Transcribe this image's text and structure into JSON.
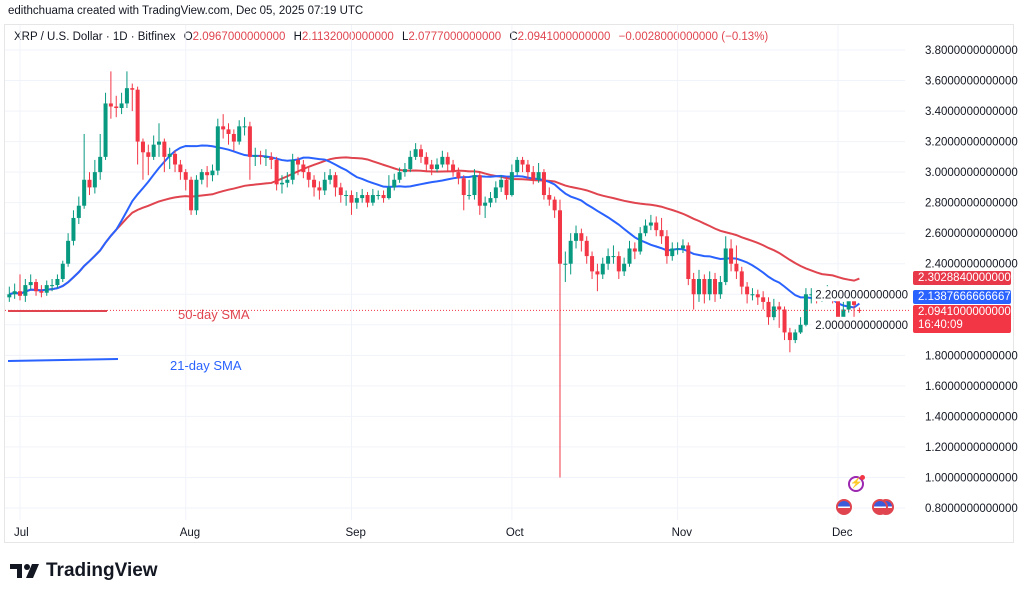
{
  "credit": "edithchuama created with TradingView.com, Dec 05, 2025 07:19 UTC",
  "legend": {
    "symbol": "XRP / U.S. Dollar · 1D · Bitfinex",
    "o_label": "O",
    "o": "2.0967000000000",
    "h_label": "H",
    "h": "2.1132000000000",
    "l_label": "L",
    "l": "2.0777000000000",
    "c_label": "C",
    "c": "2.0941000000000",
    "change": "−0.0028000000000 (−0.13%)"
  },
  "badges": {
    "sma50": "2.3028840000000",
    "sma21": "2.1387666666667",
    "price": "2.0941000000000",
    "countdown": "16:40:09"
  },
  "annotations": {
    "sma50": "50-day SMA",
    "sma21": "21-day SMA"
  },
  "logo": "TradingView",
  "colors": {
    "up": "#089981",
    "down": "#f23645",
    "sma50": "#e0454f",
    "sma21": "#2962ff",
    "sma50_badge": "#e8394a",
    "sma21_badge": "#2962ff",
    "price_badge": "#f23645"
  },
  "icons": [
    "lightning-sparkle-icon",
    "us-flag-event-icon",
    "us-flag-event-icon"
  ],
  "chart_data": {
    "type": "candlestick",
    "title": "XRP / U.S. Dollar · 1D · Bitfinex",
    "start_date": "2025-06-29",
    "end_date": "2025-12-05",
    "first_open": 2.18,
    "last_open": 2.0967,
    "ylim": [
      0.8,
      3.8
    ],
    "y_ticks": [
      "3.8000000000000",
      "3.6000000000000",
      "3.4000000000000",
      "3.2000000000000",
      "3.0000000000000",
      "2.8000000000000",
      "2.6000000000000",
      "2.4000000000000",
      "2.2000000000000",
      "2.0000000000000",
      "1.8000000000000",
      "1.6000000000000",
      "1.4000000000000",
      "1.2000000000000",
      "1.0000000000000",
      "0.8000000000000"
    ],
    "x_ticks": [
      {
        "label": "Jul",
        "date": "2025-07-01"
      },
      {
        "label": "Aug",
        "date": "2025-08-01"
      },
      {
        "label": "Sep",
        "date": "2025-09-01"
      },
      {
        "label": "Oct",
        "date": "2025-10-01"
      },
      {
        "label": "Nov",
        "date": "2025-11-01"
      },
      {
        "label": "Dec",
        "date": "2025-12-01"
      }
    ],
    "grid": true,
    "indicators": [
      {
        "name": "50-day SMA",
        "period": 50,
        "last": 2.302884
      },
      {
        "name": "21-day SMA",
        "period": 21,
        "last": 2.1387666666667
      }
    ],
    "close": [
      2.2,
      2.22,
      2.19,
      2.26,
      2.28,
      2.22,
      2.21,
      2.26,
      2.26,
      2.3,
      2.4,
      2.55,
      2.7,
      2.78,
      2.95,
      2.9,
      3.0,
      3.1,
      3.45,
      3.43,
      3.42,
      3.45,
      3.55,
      3.54,
      3.2,
      3.13,
      3.1,
      3.18,
      3.2,
      3.1,
      3.12,
      3.05,
      3.0,
      2.95,
      2.75,
      2.95,
      3.0,
      2.98,
      3.01,
      3.3,
      3.28,
      3.25,
      3.2,
      3.3,
      3.3,
      3.1,
      3.11,
      3.1,
      3.1,
      3.08,
      2.92,
      2.93,
      2.95,
      3.08,
      3.05,
      3.0,
      2.95,
      2.9,
      2.88,
      2.95,
      2.98,
      2.9,
      2.85,
      2.85,
      2.8,
      2.83,
      2.85,
      2.8,
      2.85,
      2.85,
      2.83,
      2.9,
      2.95,
      3.0,
      3.02,
      3.1,
      3.15,
      3.1,
      3.05,
      3.02,
      3.05,
      3.1,
      3.05,
      3.0,
      2.96,
      2.85,
      2.85,
      2.98,
      2.78,
      2.8,
      2.83,
      2.9,
      2.95,
      2.85,
      3.0,
      3.08,
      3.05,
      3.0,
      2.95,
      3.0,
      2.85,
      2.82,
      2.75,
      2.4,
      2.4,
      2.55,
      2.6,
      2.55,
      2.45,
      2.35,
      2.33,
      2.4,
      2.45,
      2.45,
      2.35,
      2.4,
      2.5,
      2.48,
      2.6,
      2.65,
      2.67,
      2.62,
      2.58,
      2.45,
      2.5,
      2.5,
      2.52,
      2.3,
      2.2,
      2.3,
      2.2,
      2.3,
      2.2,
      2.28,
      2.5,
      2.4,
      2.35,
      2.25,
      2.2,
      2.2,
      2.18,
      2.15,
      2.05,
      2.12,
      2.1,
      1.95,
      1.9,
      1.95,
      2.0,
      2.2,
      2.2,
      2.18,
      2.19,
      2.2,
      2.18,
      2.0,
      2.1,
      2.2,
      2.13,
      2.0941
    ],
    "high": [
      2.25,
      2.27,
      2.33,
      2.3,
      2.33,
      2.3,
      2.26,
      2.29,
      2.3,
      2.33,
      2.42,
      2.6,
      2.75,
      2.84,
      3.25,
      3.0,
      3.08,
      3.25,
      3.52,
      3.66,
      3.5,
      3.52,
      3.66,
      3.58,
      3.56,
      3.22,
      3.18,
      3.24,
      3.32,
      3.22,
      3.16,
      3.14,
      3.08,
      3.02,
      2.97,
      2.98,
      3.02,
      3.04,
      3.05,
      3.35,
      3.38,
      3.32,
      3.28,
      3.34,
      3.36,
      3.33,
      3.16,
      3.14,
      3.15,
      3.13,
      3.1,
      2.98,
      3.0,
      3.12,
      3.1,
      3.08,
      3.03,
      2.98,
      2.94,
      3.0,
      3.02,
      3.0,
      2.93,
      2.88,
      2.88,
      2.87,
      2.89,
      2.87,
      2.89,
      2.88,
      2.88,
      2.98,
      2.99,
      3.03,
      3.06,
      3.14,
      3.19,
      3.18,
      3.13,
      3.08,
      3.09,
      3.14,
      3.13,
      3.08,
      3.03,
      2.98,
      2.95,
      3.02,
      3.0,
      2.84,
      2.87,
      2.94,
      2.98,
      2.97,
      3.05,
      3.1,
      3.1,
      3.08,
      3.04,
      3.06,
      3.02,
      2.9,
      2.84,
      2.82,
      2.48,
      2.6,
      2.65,
      2.63,
      2.58,
      2.48,
      2.4,
      2.44,
      2.5,
      2.52,
      2.48,
      2.44,
      2.55,
      2.54,
      2.64,
      2.69,
      2.72,
      2.71,
      2.7,
      2.62,
      2.54,
      2.54,
      2.56,
      2.54,
      2.34,
      2.36,
      2.33,
      2.35,
      2.34,
      2.32,
      2.58,
      2.56,
      2.52,
      2.38,
      2.28,
      2.24,
      2.23,
      2.22,
      2.18,
      2.17,
      2.15,
      2.12,
      1.98,
      1.97,
      2.05,
      2.24,
      2.24,
      2.24,
      2.24,
      2.26,
      2.22,
      2.2,
      2.15,
      2.23,
      2.22,
      2.1132
    ],
    "low": [
      2.15,
      2.17,
      2.16,
      2.15,
      2.23,
      2.19,
      2.18,
      2.19,
      2.22,
      2.24,
      2.28,
      2.38,
      2.52,
      2.66,
      2.76,
      2.85,
      2.86,
      2.95,
      3.08,
      3.35,
      3.36,
      3.38,
      3.42,
      3.4,
      3.05,
      2.95,
      2.98,
      3.08,
      3.1,
      3.0,
      3.02,
      3.0,
      2.95,
      2.88,
      2.72,
      2.72,
      2.92,
      2.9,
      2.94,
      2.98,
      3.22,
      3.18,
      3.14,
      3.18,
      3.24,
      2.95,
      3.04,
      3.05,
      3.04,
      3.02,
      2.88,
      2.86,
      2.9,
      2.92,
      2.98,
      2.96,
      2.9,
      2.84,
      2.82,
      2.85,
      2.92,
      2.84,
      2.8,
      2.78,
      2.72,
      2.76,
      2.8,
      2.77,
      2.78,
      2.82,
      2.8,
      2.82,
      2.88,
      2.93,
      2.97,
      3.0,
      3.08,
      3.06,
      3.0,
      2.98,
      3.0,
      3.03,
      3.0,
      2.97,
      2.92,
      2.75,
      2.82,
      2.82,
      2.72,
      2.7,
      2.77,
      2.8,
      2.87,
      2.82,
      2.84,
      2.98,
      3.0,
      2.96,
      2.92,
      2.93,
      2.82,
      2.78,
      2.7,
      1.0,
      2.28,
      2.33,
      2.5,
      2.48,
      2.4,
      2.3,
      2.22,
      2.3,
      2.36,
      2.4,
      2.3,
      2.32,
      2.38,
      2.43,
      2.46,
      2.58,
      2.62,
      2.58,
      2.53,
      2.4,
      2.42,
      2.46,
      2.47,
      2.26,
      2.1,
      2.15,
      2.14,
      2.16,
      2.15,
      2.17,
      2.26,
      2.35,
      2.3,
      2.2,
      2.14,
      2.16,
      2.13,
      2.1,
      2.0,
      2.03,
      1.98,
      1.9,
      1.82,
      1.88,
      1.94,
      1.99,
      2.14,
      2.14,
      2.15,
      2.16,
      2.14,
      1.98,
      1.99,
      2.08,
      2.05,
      2.0777
    ]
  }
}
